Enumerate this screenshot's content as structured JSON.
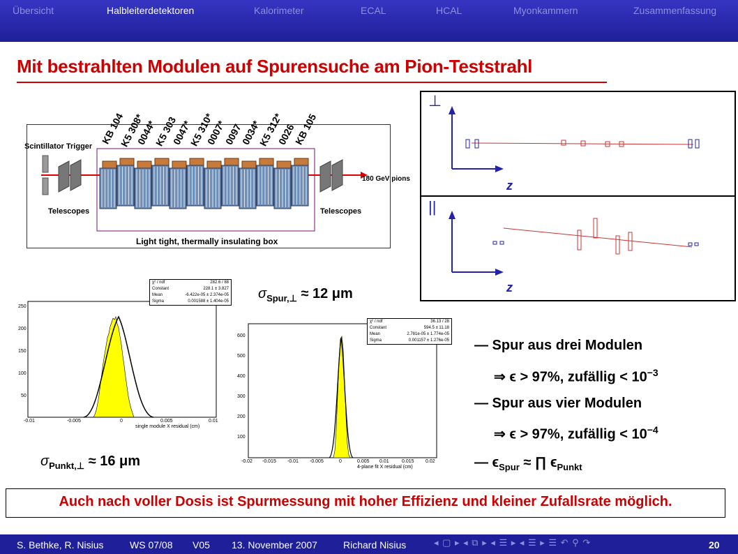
{
  "nav": {
    "items": [
      "Übersicht",
      "Halbleiterdetektoren",
      "Kalorimeter",
      "ECAL",
      "HCAL",
      "Myonkammern",
      "Zusammenfassung"
    ],
    "active": "Halbleiterdetektoren"
  },
  "slide": {
    "title": "Mit bestrahlten Modulen auf Spurensuche am Pion-Teststrahl"
  },
  "detector": {
    "module_labels": [
      "KB 104",
      "K5 308*",
      "0044*",
      "K5 303",
      "0047*",
      "K5 310*",
      "0007*",
      "0097",
      "0034*",
      "K5 312*",
      "0026",
      "KB 105"
    ],
    "scintillator": "Scintillator Trigger",
    "telescopes_left": "Telescopes",
    "telescopes_right": "Telescopes",
    "beam": "180 GeV pions",
    "box": "Light tight, thermally insulating box"
  },
  "tracks": {
    "perp_symbol": "⊥",
    "par_symbol": "||",
    "axis_z": "z",
    "colors": {
      "track": "#cc3333",
      "axis": "#2222aa"
    }
  },
  "hist1": {
    "stats": [
      [
        "χ² / ndf",
        "282.6 / 88"
      ],
      [
        "Constant",
        "228.1 ± 3.827"
      ],
      [
        "Mean",
        "-6.422e-05 ± 2.374e-05"
      ],
      [
        "Sigma",
        "0.001588 ± 1.404e-05"
      ]
    ],
    "yticks": [
      "250",
      "200",
      "150",
      "100",
      "50"
    ],
    "xticks": [
      "-0.01",
      "-0.005",
      "0",
      "0.005",
      "0.01"
    ],
    "xlabel": "single module X residual (cm)"
  },
  "hist2": {
    "stats": [
      [
        "χ² / ndf",
        "36.13 / 28"
      ],
      [
        "Constant",
        "594.5 ± 11.18"
      ],
      [
        "Mean",
        "2.781e-05 ± 1.774e-05"
      ],
      [
        "Sigma",
        "0.001157 ± 1.276e-05"
      ]
    ],
    "yticks": [
      "600",
      "500",
      "400",
      "300",
      "200",
      "100"
    ],
    "xticks": [
      "-0.02",
      "-0.015",
      "-0.01",
      "-0.005",
      "0",
      "0.005",
      "0.01",
      "0.015",
      "0.02"
    ],
    "xlabel": "4-plane fit X residual (cm)"
  },
  "formulas": {
    "sigma_spur_sym": "σ",
    "sigma_spur_sub": "Spur,⊥",
    "sigma_spur_val": "≈ 12 μm",
    "sigma_punkt_sym": "σ",
    "sigma_punkt_sub": "Punkt,⊥",
    "sigma_punkt_val": "≈ 16 μm"
  },
  "bullets": {
    "b1": "— Spur aus drei Modulen",
    "b1_res": "⇒ ϵ > 97%, zufällig < 10",
    "b1_exp": "−3",
    "b2": "— Spur aus vier Modulen",
    "b2_res": "⇒ ϵ > 97%, zufällig < 10",
    "b2_exp": "−4",
    "b3_pre": "— ϵ",
    "b3_sub1": "Spur",
    "b3_mid": " ≈ ∏ ϵ",
    "b3_sub2": "Punkt"
  },
  "conclusion": "Auch nach voller Dosis ist Spurmessung mit hoher Effizienz und kleiner Zufallsrate möglich.",
  "footer": {
    "authors": "S. Bethke, R. Nisius",
    "semester": "WS 07/08",
    "lecture": "V05",
    "date": "13. November 2007",
    "speaker": "Richard Nisius",
    "page": "20",
    "nav_symbols": "◂ ▢ ▸ ◂ ⧉ ▸ ◂ ☰ ▸ ◂ ☰ ▸   ☰   ↶ ⚲ ↷"
  }
}
